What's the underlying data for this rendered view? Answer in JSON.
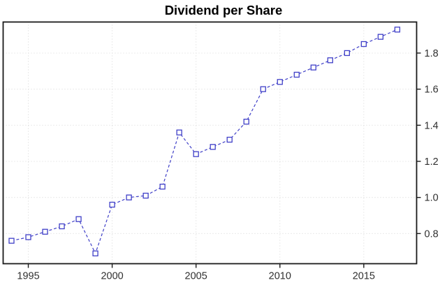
{
  "chart_data": {
    "type": "line",
    "title": "Dividend per Share",
    "x": [
      1994,
      1995,
      1996,
      1997,
      1998,
      1999,
      2000,
      2001,
      2002,
      2003,
      2004,
      2005,
      2006,
      2007,
      2008,
      2009,
      2010,
      2011,
      2012,
      2013,
      2014,
      2015,
      2016,
      2017
    ],
    "values": [
      0.76,
      0.78,
      0.81,
      0.84,
      0.88,
      0.69,
      0.96,
      1.0,
      1.01,
      1.06,
      1.36,
      1.24,
      1.28,
      1.32,
      1.42,
      1.6,
      1.64,
      1.68,
      1.72,
      1.76,
      1.8,
      1.85,
      1.89,
      1.93
    ],
    "x_tick_values": [
      1995,
      2000,
      2005,
      2010,
      2015
    ],
    "x_tick_labels": [
      "1995",
      "2000",
      "2005",
      "2010",
      "2015"
    ],
    "y_tick_values": [
      0.8,
      1.0,
      1.2,
      1.4,
      1.6,
      1.8
    ],
    "y_tick_labels": [
      "0.8",
      "1.0",
      "1.2",
      "1.4",
      "1.6",
      "1.8"
    ],
    "xlim": [
      1993.5,
      2018.15
    ],
    "ylim": [
      0.633,
      1.972
    ],
    "grid": true,
    "y_axis_side": "right",
    "line_style": "dashed",
    "marker": "open-square",
    "legend": "none",
    "colors": {
      "series": "#4040c8",
      "marker_fill": "#ffffff",
      "grid": "#d6d6d6",
      "axis": "#1a1a1a",
      "tick_label": "#303030",
      "background": "#ffffff"
    }
  }
}
